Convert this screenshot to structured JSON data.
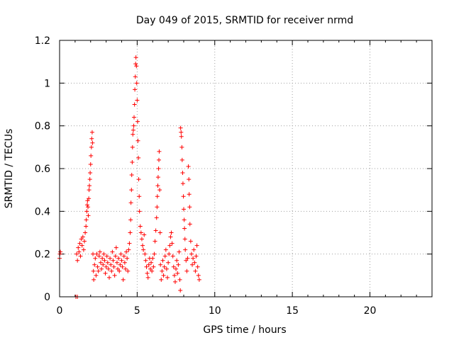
{
  "chart_data": {
    "type": "scatter",
    "title": "Day 049 of 2015, SRMTID for receiver nrmd",
    "xlabel": "GPS time / hours",
    "ylabel": "SRMTID / TECUs",
    "xlim": [
      0,
      24
    ],
    "ylim": [
      0,
      1.2
    ],
    "x_ticks": [
      0,
      5,
      10,
      15,
      20
    ],
    "x_tick_labels": [
      "0",
      "5",
      "10",
      "15",
      "20"
    ],
    "y_ticks": [
      0,
      0.2,
      0.4,
      0.6,
      0.8,
      1.0,
      1.2
    ],
    "y_tick_labels": [
      "0",
      "0.2",
      "0.4",
      "0.6",
      "0.8",
      "1",
      "1.2"
    ],
    "grid": true,
    "marker": "plus",
    "color": "#ff0000",
    "series": [
      {
        "name": "SRMTID",
        "points": [
          [
            0.0,
            0.18
          ],
          [
            0.02,
            0.2
          ],
          [
            0.05,
            0.21
          ],
          [
            1.05,
            0.0
          ],
          [
            1.15,
            0.0
          ],
          [
            1.1,
            0.2
          ],
          [
            1.15,
            0.17
          ],
          [
            1.2,
            0.23
          ],
          [
            1.25,
            0.21
          ],
          [
            1.3,
            0.25
          ],
          [
            1.35,
            0.19
          ],
          [
            1.4,
            0.27
          ],
          [
            1.45,
            0.24
          ],
          [
            1.5,
            0.28
          ],
          [
            1.55,
            0.22
          ],
          [
            1.6,
            0.26
          ],
          [
            1.65,
            0.3
          ],
          [
            1.7,
            0.33
          ],
          [
            1.72,
            0.36
          ],
          [
            1.75,
            0.4
          ],
          [
            1.78,
            0.43
          ],
          [
            1.8,
            0.45
          ],
          [
            1.83,
            0.42
          ],
          [
            1.85,
            0.38
          ],
          [
            1.88,
            0.46
          ],
          [
            1.9,
            0.5
          ],
          [
            1.92,
            0.52
          ],
          [
            1.95,
            0.55
          ],
          [
            1.97,
            0.58
          ],
          [
            2.0,
            0.62
          ],
          [
            2.02,
            0.66
          ],
          [
            2.05,
            0.7
          ],
          [
            2.07,
            0.74
          ],
          [
            2.1,
            0.77
          ],
          [
            2.12,
            0.72
          ],
          [
            2.15,
            0.2
          ],
          [
            2.18,
            0.12
          ],
          [
            2.2,
            0.08
          ],
          [
            2.25,
            0.15
          ],
          [
            2.3,
            0.18
          ],
          [
            2.35,
            0.1
          ],
          [
            2.4,
            0.2
          ],
          [
            2.45,
            0.14
          ],
          [
            2.5,
            0.12
          ],
          [
            2.55,
            0.19
          ],
          [
            2.6,
            0.21
          ],
          [
            2.65,
            0.16
          ],
          [
            2.7,
            0.13
          ],
          [
            2.75,
            0.18
          ],
          [
            2.8,
            0.15
          ],
          [
            2.85,
            0.2
          ],
          [
            2.9,
            0.17
          ],
          [
            2.95,
            0.11
          ],
          [
            3.0,
            0.14
          ],
          [
            3.05,
            0.19
          ],
          [
            3.1,
            0.16
          ],
          [
            3.15,
            0.13
          ],
          [
            3.2,
            0.09
          ],
          [
            3.25,
            0.18
          ],
          [
            3.3,
            0.15
          ],
          [
            3.35,
            0.12
          ],
          [
            3.4,
            0.21
          ],
          [
            3.45,
            0.17
          ],
          [
            3.5,
            0.14
          ],
          [
            3.55,
            0.1
          ],
          [
            3.6,
            0.19
          ],
          [
            3.65,
            0.23
          ],
          [
            3.7,
            0.16
          ],
          [
            3.75,
            0.13
          ],
          [
            3.8,
            0.18
          ],
          [
            3.85,
            0.12
          ],
          [
            3.9,
            0.15
          ],
          [
            3.95,
            0.2
          ],
          [
            4.0,
            0.17
          ],
          [
            4.05,
            0.14
          ],
          [
            4.1,
            0.08
          ],
          [
            4.15,
            0.19
          ],
          [
            4.2,
            0.16
          ],
          [
            4.25,
            0.13
          ],
          [
            4.3,
            0.21
          ],
          [
            4.35,
            0.18
          ],
          [
            4.4,
            0.12
          ],
          [
            4.45,
            0.22
          ],
          [
            4.5,
            0.25
          ],
          [
            4.55,
            0.3
          ],
          [
            4.58,
            0.36
          ],
          [
            4.6,
            0.44
          ],
          [
            4.63,
            0.5
          ],
          [
            4.65,
            0.57
          ],
          [
            4.68,
            0.63
          ],
          [
            4.7,
            0.7
          ],
          [
            4.72,
            0.76
          ],
          [
            4.75,
            0.78
          ],
          [
            4.78,
            0.8
          ],
          [
            4.8,
            0.84
          ],
          [
            4.83,
            0.9
          ],
          [
            4.85,
            0.97
          ],
          [
            4.88,
            1.03
          ],
          [
            4.9,
            1.09
          ],
          [
            4.92,
            1.12
          ],
          [
            4.95,
            1.08
          ],
          [
            4.97,
            1.0
          ],
          [
            5.0,
            0.92
          ],
          [
            5.03,
            0.82
          ],
          [
            5.05,
            0.73
          ],
          [
            5.08,
            0.65
          ],
          [
            5.1,
            0.55
          ],
          [
            5.13,
            0.47
          ],
          [
            5.15,
            0.4
          ],
          [
            5.2,
            0.33
          ],
          [
            5.25,
            0.3
          ],
          [
            5.3,
            0.27
          ],
          [
            5.35,
            0.24
          ],
          [
            5.4,
            0.22
          ],
          [
            5.45,
            0.29
          ],
          [
            5.5,
            0.2
          ],
          [
            5.55,
            0.17
          ],
          [
            5.6,
            0.14
          ],
          [
            5.65,
            0.11
          ],
          [
            5.7,
            0.09
          ],
          [
            5.75,
            0.15
          ],
          [
            5.8,
            0.18
          ],
          [
            5.85,
            0.13
          ],
          [
            5.9,
            0.16
          ],
          [
            5.95,
            0.12
          ],
          [
            6.0,
            0.18
          ],
          [
            6.05,
            0.14
          ],
          [
            6.1,
            0.2
          ],
          [
            6.15,
            0.26
          ],
          [
            6.2,
            0.31
          ],
          [
            6.25,
            0.37
          ],
          [
            6.28,
            0.42
          ],
          [
            6.3,
            0.47
          ],
          [
            6.33,
            0.52
          ],
          [
            6.35,
            0.56
          ],
          [
            6.38,
            0.6
          ],
          [
            6.4,
            0.64
          ],
          [
            6.42,
            0.68
          ],
          [
            6.45,
            0.5
          ],
          [
            6.48,
            0.3
          ],
          [
            6.5,
            0.15
          ],
          [
            6.55,
            0.08
          ],
          [
            6.6,
            0.12
          ],
          [
            6.65,
            0.17
          ],
          [
            6.7,
            0.1
          ],
          [
            6.75,
            0.14
          ],
          [
            6.8,
            0.19
          ],
          [
            6.85,
            0.22
          ],
          [
            6.9,
            0.13
          ],
          [
            6.95,
            0.09
          ],
          [
            7.0,
            0.16
          ],
          [
            7.05,
            0.2
          ],
          [
            7.1,
            0.24
          ],
          [
            7.15,
            0.28
          ],
          [
            7.2,
            0.3
          ],
          [
            7.25,
            0.25
          ],
          [
            7.3,
            0.19
          ],
          [
            7.35,
            0.14
          ],
          [
            7.4,
            0.1
          ],
          [
            7.45,
            0.07
          ],
          [
            7.5,
            0.13
          ],
          [
            7.55,
            0.17
          ],
          [
            7.6,
            0.11
          ],
          [
            7.65,
            0.15
          ],
          [
            7.7,
            0.21
          ],
          [
            7.75,
            0.08
          ],
          [
            7.78,
            0.03
          ],
          [
            7.8,
            0.79
          ],
          [
            7.83,
            0.77
          ],
          [
            7.85,
            0.75
          ],
          [
            7.88,
            0.7
          ],
          [
            7.9,
            0.64
          ],
          [
            7.93,
            0.58
          ],
          [
            7.95,
            0.53
          ],
          [
            7.98,
            0.47
          ],
          [
            8.0,
            0.41
          ],
          [
            8.03,
            0.36
          ],
          [
            8.05,
            0.32
          ],
          [
            8.08,
            0.27
          ],
          [
            8.1,
            0.22
          ],
          [
            8.15,
            0.17
          ],
          [
            8.2,
            0.12
          ],
          [
            8.25,
            0.18
          ],
          [
            8.3,
            0.61
          ],
          [
            8.33,
            0.55
          ],
          [
            8.35,
            0.48
          ],
          [
            8.38,
            0.42
          ],
          [
            8.4,
            0.34
          ],
          [
            8.45,
            0.26
          ],
          [
            8.5,
            0.2
          ],
          [
            8.55,
            0.15
          ],
          [
            8.6,
            0.18
          ],
          [
            8.65,
            0.22
          ],
          [
            8.7,
            0.16
          ],
          [
            8.75,
            0.12
          ],
          [
            8.8,
            0.19
          ],
          [
            8.85,
            0.24
          ],
          [
            8.9,
            0.14
          ],
          [
            8.95,
            0.1
          ],
          [
            9.0,
            0.08
          ]
        ]
      }
    ]
  }
}
